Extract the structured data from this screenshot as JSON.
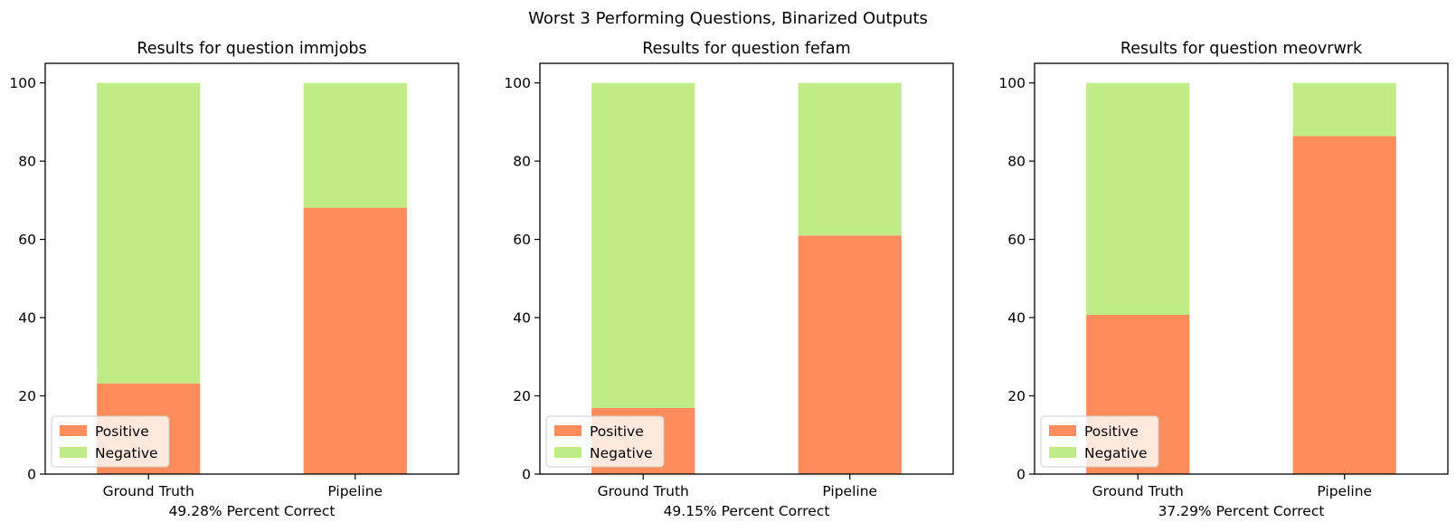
{
  "figure": {
    "suptitle": "Worst 3 Performing Questions, Binarized Outputs"
  },
  "colors": {
    "positive": "#ff8c5a",
    "negative": "#c0ec88",
    "axes": "#000000"
  },
  "chart_data": [
    {
      "type": "bar",
      "stacked": true,
      "title": "Results for question immjobs",
      "xlabel": "49.28% Percent Correct",
      "ylabel": "",
      "categories": [
        "Ground Truth",
        "Pipeline"
      ],
      "series": [
        {
          "name": "Positive",
          "values": [
            23.2,
            68.1
          ]
        },
        {
          "name": "Negative",
          "values": [
            76.8,
            31.9
          ]
        }
      ],
      "ylim": [
        0,
        105
      ],
      "yticks": [
        0,
        20,
        40,
        60,
        80,
        100
      ],
      "grid": false,
      "legend": "lower-left"
    },
    {
      "type": "bar",
      "stacked": true,
      "title": "Results for question fefam",
      "xlabel": "49.15% Percent Correct",
      "ylabel": "",
      "categories": [
        "Ground Truth",
        "Pipeline"
      ],
      "series": [
        {
          "name": "Positive",
          "values": [
            16.9,
            61.0
          ]
        },
        {
          "name": "Negative",
          "values": [
            83.1,
            39.0
          ]
        }
      ],
      "ylim": [
        0,
        105
      ],
      "yticks": [
        0,
        20,
        40,
        60,
        80,
        100
      ],
      "grid": false,
      "legend": "lower-left"
    },
    {
      "type": "bar",
      "stacked": true,
      "title": "Results for question meovrwrk",
      "xlabel": "37.29% Percent Correct",
      "ylabel": "",
      "categories": [
        "Ground Truth",
        "Pipeline"
      ],
      "series": [
        {
          "name": "Positive",
          "values": [
            40.7,
            86.4
          ]
        },
        {
          "name": "Negative",
          "values": [
            59.3,
            13.6
          ]
        }
      ],
      "ylim": [
        0,
        105
      ],
      "yticks": [
        0,
        20,
        40,
        60,
        80,
        100
      ],
      "grid": false,
      "legend": "lower-left"
    }
  ]
}
